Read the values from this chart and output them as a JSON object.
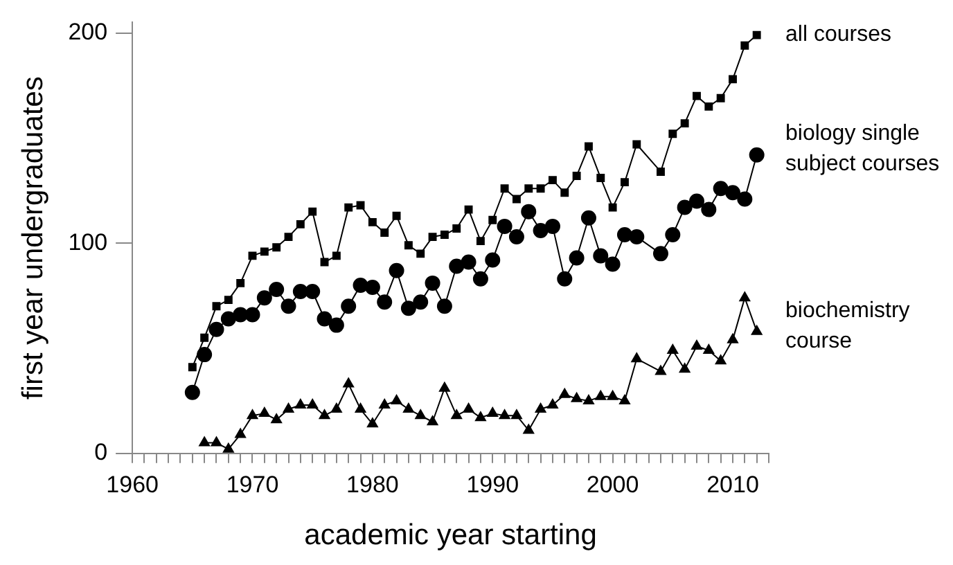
{
  "chart_data": {
    "type": "line",
    "xlabel": "academic year starting",
    "ylabel": "first year undergraduates",
    "x": [
      1965,
      1966,
      1967,
      1968,
      1969,
      1970,
      1971,
      1972,
      1973,
      1974,
      1975,
      1976,
      1977,
      1978,
      1979,
      1980,
      1981,
      1982,
      1983,
      1984,
      1985,
      1986,
      1987,
      1988,
      1989,
      1990,
      1991,
      1992,
      1993,
      1994,
      1995,
      1996,
      1997,
      1998,
      1999,
      2000,
      2001,
      2002,
      2004,
      2005,
      2006,
      2007,
      2008,
      2009,
      2010,
      2011,
      2012
    ],
    "series": [
      {
        "name": "all courses",
        "color": "#000000",
        "marker": "square",
        "values": [
          41,
          55,
          70,
          73,
          81,
          94,
          96,
          98,
          103,
          109,
          115,
          91,
          94,
          117,
          118,
          110,
          105,
          113,
          99,
          95,
          103,
          104,
          107,
          116,
          101,
          111,
          126,
          121,
          126,
          126,
          130,
          124,
          132,
          146,
          131,
          117,
          129,
          147,
          134,
          152,
          157,
          170,
          165,
          169,
          178,
          194,
          199
        ]
      },
      {
        "name": "biology single subject courses",
        "color": "#000000",
        "marker": "circle",
        "values": [
          29,
          47,
          59,
          64,
          66,
          66,
          74,
          78,
          70,
          77,
          77,
          64,
          61,
          70,
          80,
          79,
          72,
          87,
          69,
          72,
          81,
          70,
          89,
          91,
          83,
          92,
          108,
          103,
          115,
          106,
          108,
          83,
          93,
          112,
          94,
          90,
          104,
          103,
          95,
          104,
          117,
          120,
          116,
          126,
          124,
          121,
          142
        ]
      },
      {
        "name": "biochemistry course",
        "color": "#000000",
        "marker": "triangle",
        "values": [
          null,
          5,
          5,
          2,
          9,
          18,
          19,
          16,
          21,
          23,
          23,
          18,
          21,
          33,
          21,
          14,
          23,
          25,
          21,
          18,
          15,
          31,
          18,
          21,
          17,
          19,
          18,
          18,
          11,
          21,
          23,
          28,
          26,
          25,
          27,
          27,
          25,
          45,
          39,
          49,
          40,
          51,
          49,
          44,
          54,
          74,
          58
        ]
      }
    ],
    "xlim": [
      1960,
      2013
    ],
    "xticks": [
      1960,
      {
        "value": 1961,
        "label": null
      },
      {
        "value": 1962,
        "label": null
      },
      {
        "value": 1963,
        "label": null
      },
      {
        "value": 1964,
        "label": null
      },
      {
        "value": 1965,
        "label": null
      },
      {
        "value": 1966,
        "label": null
      },
      {
        "value": 1967,
        "label": null
      },
      {
        "value": 1968,
        "label": null
      },
      {
        "value": 1969,
        "label": null
      },
      1970,
      {
        "value": 1971,
        "label": null
      },
      {
        "value": 1972,
        "label": null
      },
      {
        "value": 1973,
        "label": null
      },
      {
        "value": 1974,
        "label": null
      },
      {
        "value": 1975,
        "label": null
      },
      {
        "value": 1976,
        "label": null
      },
      {
        "value": 1977,
        "label": null
      },
      {
        "value": 1978,
        "label": null
      },
      {
        "value": 1979,
        "label": null
      },
      1980,
      {
        "value": 1981,
        "label": null
      },
      {
        "value": 1982,
        "label": null
      },
      {
        "value": 1983,
        "label": null
      },
      {
        "value": 1984,
        "label": null
      },
      {
        "value": 1985,
        "label": null
      },
      {
        "value": 1986,
        "label": null
      },
      {
        "value": 1987,
        "label": null
      },
      {
        "value": 1988,
        "label": null
      },
      {
        "value": 1989,
        "label": null
      },
      1990,
      {
        "value": 1991,
        "label": null
      },
      {
        "value": 1992,
        "label": null
      },
      {
        "value": 1993,
        "label": null
      },
      {
        "value": 1994,
        "label": null
      },
      {
        "value": 1995,
        "label": null
      },
      {
        "value": 1996,
        "label": null
      },
      {
        "value": 1997,
        "label": null
      },
      {
        "value": 1998,
        "label": null
      },
      {
        "value": 1999,
        "label": null
      },
      2000,
      {
        "value": 2001,
        "label": null
      },
      {
        "value": 2002,
        "label": null
      },
      {
        "value": 2003,
        "label": null
      },
      {
        "value": 2004,
        "label": null
      },
      {
        "value": 2005,
        "label": null
      },
      {
        "value": 2006,
        "label": null
      },
      {
        "value": 2007,
        "label": null
      },
      {
        "value": 2008,
        "label": null
      },
      {
        "value": 2009,
        "label": null
      },
      2010,
      {
        "value": 2011,
        "label": null
      },
      {
        "value": 2012,
        "label": null
      },
      {
        "value": 2013,
        "label": null
      }
    ],
    "ylim": [
      0,
      205
    ],
    "yticks": [
      0,
      100,
      200
    ],
    "grid": false,
    "legend": false,
    "line_style": "solid"
  }
}
